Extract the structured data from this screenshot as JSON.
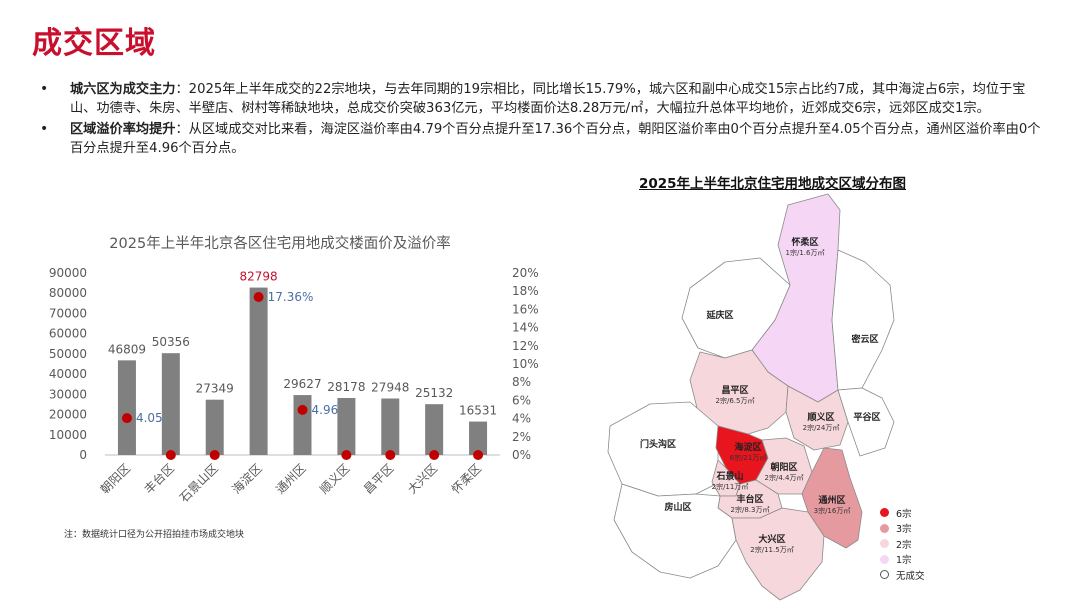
{
  "page_title": "成交区域",
  "bullets": [
    {
      "head": "城六区为成交主力",
      "text": "：2025年上半年成交的22宗地块，与去年同期的19宗相比，同比增长15.79%，城六区和副中心成交15宗占比约7成，其中海淀占6宗，均位于宝山、功德寺、朱房、半壁店、树村等稀缺地块，总成交价突破363亿元，平均楼面价达8.28万元/㎡，大幅拉升总体平均地价，近郊成交6宗，远郊区成交1宗。"
    },
    {
      "head": "区域溢价率均提升",
      "text": "：从区域成交对比来看，海淀区溢价率由4.79个百分点提升至17.36个百分点，朝阳区溢价率由0个百分点提升至4.05个百分点，通州区溢价率由0个百分点提升至4.96个百分点。"
    }
  ],
  "chart_data": {
    "type": "bar",
    "title": "2025年上半年北京各区住宅用地成交楼面价及溢价率",
    "categories": [
      "朝阳区",
      "丰台区",
      "石景山区",
      "海淀区",
      "通州区",
      "顺义区",
      "昌平区",
      "大兴区",
      "怀柔区"
    ],
    "series": [
      {
        "values": [
          46809,
          50356,
          27349,
          82798,
          29627,
          28178,
          27948,
          25132,
          16531
        ]
      },
      {
        "values": [
          4.05,
          0,
          0,
          17.36,
          4.96,
          0,
          0,
          0,
          0
        ]
      }
    ],
    "bar_labels": [
      "46809",
      "50356",
      "27349",
      "82798",
      "29627",
      "28178",
      "27948",
      "25132",
      "16531"
    ],
    "dot_labels": [
      "4.05%",
      "",
      "",
      "17.36%",
      "4.96%",
      "",
      "",
      "",
      ""
    ],
    "y_left": {
      "min": 0,
      "max": 90000,
      "step": 10000,
      "ticks": [
        "0",
        "10000",
        "20000",
        "30000",
        "40000",
        "50000",
        "60000",
        "70000",
        "80000",
        "90000"
      ]
    },
    "y_right": {
      "min": 0,
      "max": 20,
      "step": 2,
      "ticks": [
        "0%",
        "2%",
        "4%",
        "6%",
        "8%",
        "10%",
        "12%",
        "14%",
        "16%",
        "18%",
        "20%"
      ]
    },
    "colors": {
      "bar": "#808080",
      "dot": "#c00000",
      "dot_label": "#4a6fa5",
      "highlight_label": "#c8102e",
      "text": "#595959"
    },
    "highlight_index": 3
  },
  "note": "注：数据统计口径为公开招拍挂市场成交地块",
  "map": {
    "title": "2025年上半年北京住宅用地成交区域分布图",
    "districts": [
      {
        "name": "怀柔区",
        "info": "1宗/1.6万㎡",
        "level": 1
      },
      {
        "name": "延庆区",
        "info": "",
        "level": 0
      },
      {
        "name": "密云区",
        "info": "",
        "level": 0
      },
      {
        "name": "昌平区",
        "info": "2宗/6.5万㎡",
        "level": 2
      },
      {
        "name": "顺义区",
        "info": "2宗/24万㎡",
        "level": 2
      },
      {
        "name": "平谷区",
        "info": "",
        "level": 0
      },
      {
        "name": "门头沟区",
        "info": "",
        "level": 0
      },
      {
        "name": "海淀区",
        "info": "6宗/21万㎡",
        "level": 6
      },
      {
        "name": "石景山",
        "info": "2宗/11万㎡",
        "level": 2
      },
      {
        "name": "朝阳区",
        "info": "2宗/4.4万㎡",
        "level": 2
      },
      {
        "name": "丰台区",
        "info": "2宗/8.3万㎡",
        "level": 2
      },
      {
        "name": "通州区",
        "info": "3宗/16万㎡",
        "level": 3
      },
      {
        "name": "房山区",
        "info": "",
        "level": 0
      },
      {
        "name": "大兴区",
        "info": "2宗/11.5万㎡",
        "level": 2
      }
    ],
    "legend": [
      {
        "label": "6宗",
        "color": "#e8141e"
      },
      {
        "label": "3宗",
        "color": "#e59aa0"
      },
      {
        "label": "2宗",
        "color": "#f6d7db"
      },
      {
        "label": "1宗",
        "color": "#f5d6f5"
      },
      {
        "label": "无成交",
        "color": "#ffffff"
      }
    ]
  }
}
